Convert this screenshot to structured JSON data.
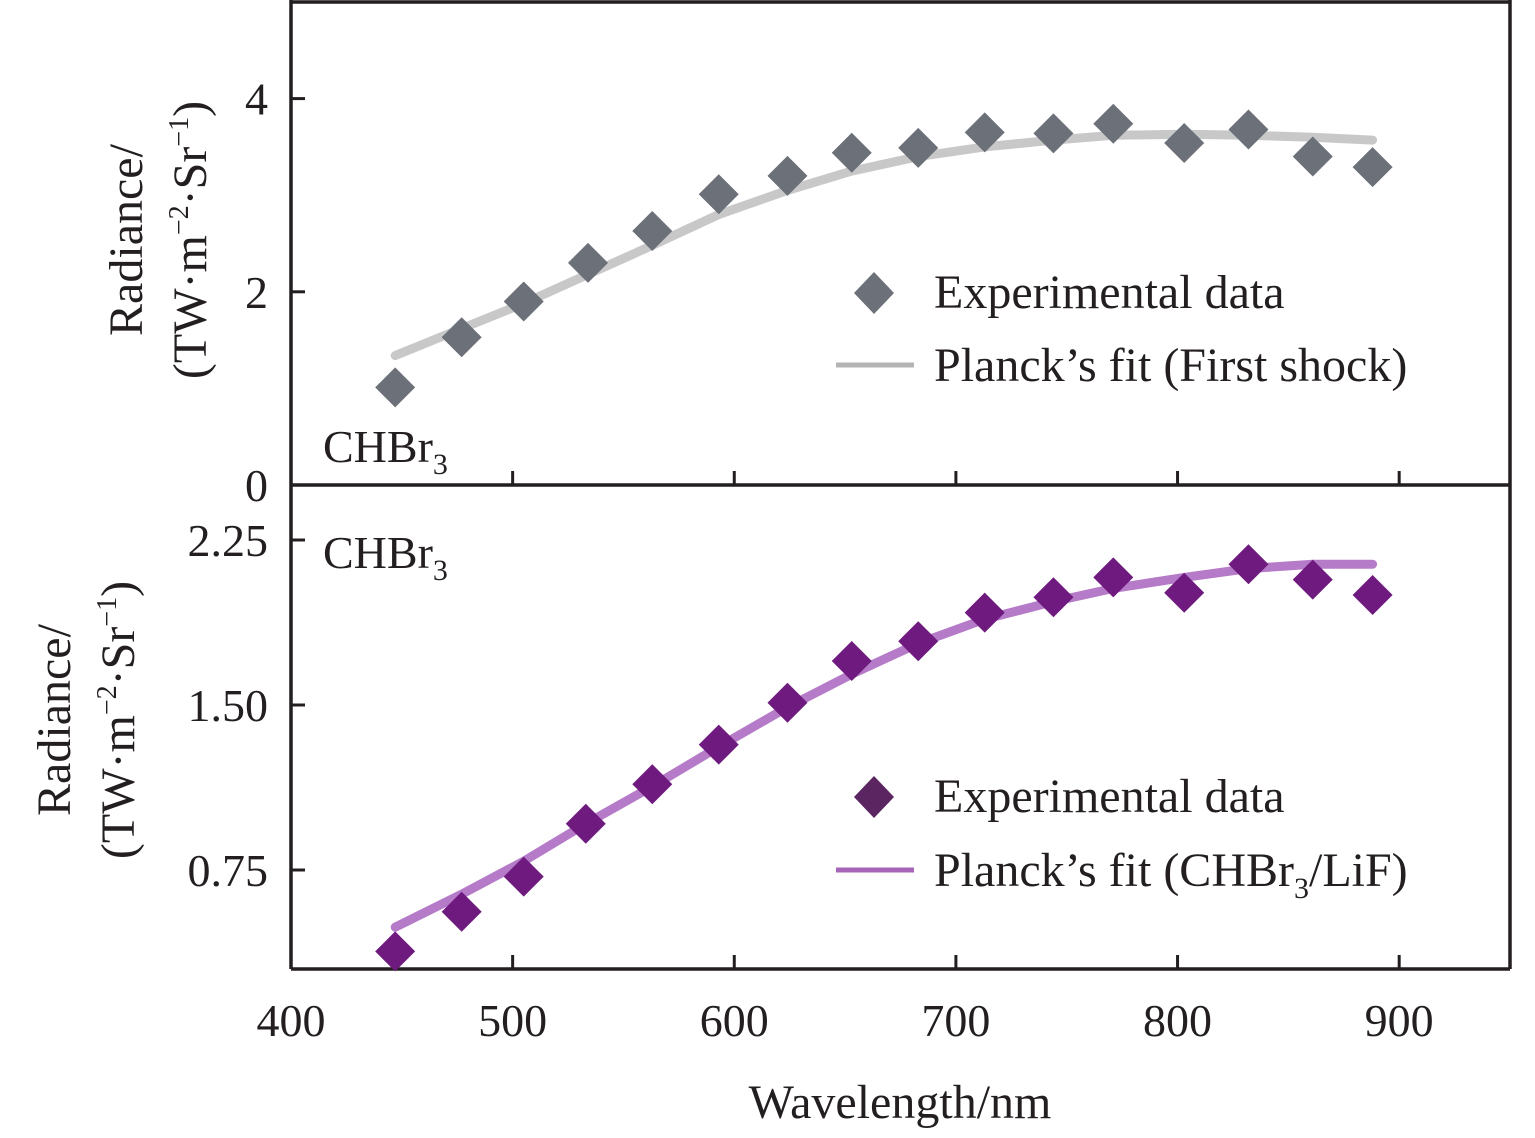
{
  "chart_data": [
    {
      "type": "scatter",
      "panel": "top",
      "title": "",
      "annotation": {
        "main": "CHBr",
        "subscript": "3"
      },
      "xlabel": "Wavelength/nm",
      "ylabel": {
        "line1": "Radiance/",
        "line2_prefix": "(TW·m",
        "sup1": "−2",
        "line2_mid": "·Sr",
        "sup2": "−1",
        "line2_suffix": ")"
      },
      "xlim": [
        400,
        950
      ],
      "ylim": [
        0,
        5
      ],
      "xticks": [
        400,
        500,
        600,
        700,
        800,
        900
      ],
      "yticks": [
        0,
        2,
        4
      ],
      "ytick_labels": [
        "0",
        "2",
        "4"
      ],
      "grid": false,
      "legend_position": "right",
      "series": [
        {
          "name": "Experimental data",
          "kind": "markers",
          "marker": "diamond",
          "color": "#6b7079",
          "x": [
            447,
            477,
            505,
            534,
            563,
            593,
            624,
            653,
            683,
            713,
            744,
            771,
            803,
            832,
            861,
            888
          ],
          "y": [
            1.01,
            1.53,
            1.9,
            2.3,
            2.63,
            3.01,
            3.2,
            3.44,
            3.49,
            3.65,
            3.64,
            3.74,
            3.54,
            3.68,
            3.4,
            3.29
          ]
        },
        {
          "name": "Planck's fit (First shock)",
          "legend_label": "Planck’s fit (First shock)",
          "kind": "line",
          "color": "#c8c8c8",
          "x": [
            447,
            477,
            505,
            534,
            563,
            593,
            624,
            653,
            683,
            713,
            744,
            771,
            803,
            832,
            861,
            888
          ],
          "y": [
            1.34,
            1.62,
            1.88,
            2.18,
            2.48,
            2.8,
            3.05,
            3.25,
            3.4,
            3.5,
            3.57,
            3.62,
            3.63,
            3.62,
            3.6,
            3.57
          ]
        }
      ]
    },
    {
      "type": "scatter",
      "panel": "bottom",
      "title": "",
      "annotation": {
        "main": "CHBr",
        "subscript": "3"
      },
      "xlabel": "Wavelength/nm",
      "ylabel": {
        "line1": "Radiance/",
        "line2_prefix": "(TW·m",
        "sup1": "−2",
        "line2_mid": "·Sr",
        "sup2": "−1",
        "line2_suffix": ")"
      },
      "xlim": [
        400,
        950
      ],
      "ylim": [
        0.3,
        2.5
      ],
      "xticks": [
        400,
        500,
        600,
        700,
        800,
        900
      ],
      "xtick_labels": [
        "400",
        "500",
        "600",
        "700",
        "800",
        "900"
      ],
      "yticks": [
        0.75,
        1.5,
        2.25
      ],
      "ytick_labels": [
        "0.75",
        "1.50",
        "2.25"
      ],
      "grid": false,
      "legend_position": "bottom-right",
      "series": [
        {
          "name": "Experimental data",
          "kind": "markers",
          "marker": "diamond",
          "color": "#6e1a7e",
          "legend_color": "#5a2560",
          "x": [
            447,
            477,
            505,
            533,
            563,
            593,
            624,
            653,
            683,
            713,
            744,
            771,
            803,
            832,
            861,
            888
          ],
          "y": [
            0.38,
            0.56,
            0.72,
            0.96,
            1.14,
            1.32,
            1.51,
            1.7,
            1.79,
            1.92,
            1.99,
            2.08,
            2.01,
            2.14,
            2.07,
            2.0
          ]
        },
        {
          "name": "Planck's fit (CHBr3/LiF)",
          "legend_label_prefix": "Planck’s fit (CHBr",
          "legend_label_sub": "3",
          "legend_label_suffix": "/LiF)",
          "kind": "line",
          "color": "#b57ac8",
          "x": [
            447,
            477,
            505,
            533,
            563,
            593,
            624,
            653,
            683,
            713,
            744,
            771,
            803,
            832,
            861,
            888
          ],
          "y": [
            0.49,
            0.64,
            0.79,
            0.96,
            1.13,
            1.31,
            1.49,
            1.64,
            1.78,
            1.89,
            1.97,
            2.03,
            2.08,
            2.12,
            2.14,
            2.14
          ]
        }
      ]
    }
  ]
}
